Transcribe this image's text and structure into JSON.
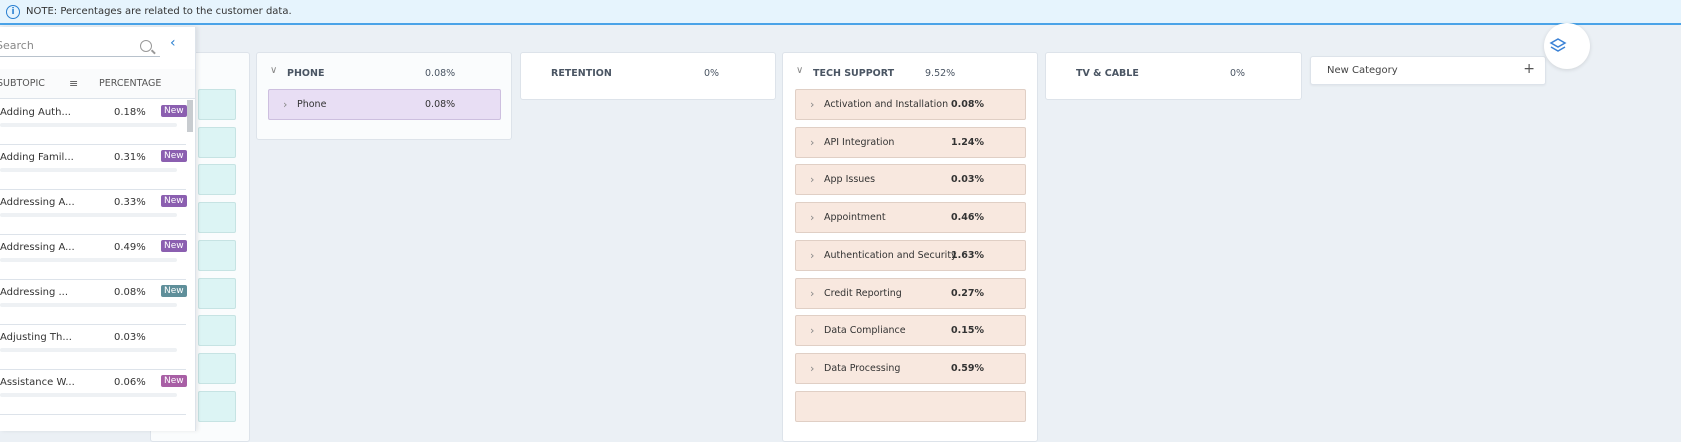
{
  "banner": {
    "text": "NOTE: Percentages are related to the customer data."
  },
  "sidebar": {
    "search_placeholder": "Search",
    "col_subtopic": "SUBTOPIC",
    "col_percentage": "PERCENTAGE",
    "rows": [
      {
        "name": "Adding Auth...",
        "pct": "0.18%",
        "badge": "New",
        "badge_color": "#8b5fb0"
      },
      {
        "name": "Adding Famil...",
        "pct": "0.31%",
        "badge": "New",
        "badge_color": "#8b5fb0"
      },
      {
        "name": "Addressing A...",
        "pct": "0.33%",
        "badge": "New",
        "badge_color": "#8b5fb0"
      },
      {
        "name": "Addressing A...",
        "pct": "0.49%",
        "badge": "New",
        "badge_color": "#8b5fb0"
      },
      {
        "name": "Addressing ...",
        "pct": "0.08%",
        "badge": "New",
        "badge_color": "#5f8f9a"
      },
      {
        "name": "Adjusting Th...",
        "pct": "0.03%",
        "badge": "",
        "badge_color": ""
      },
      {
        "name": "Assistance W...",
        "pct": "0.06%",
        "badge": "New",
        "badge_color": "#a85fa5"
      }
    ]
  },
  "columns": {
    "phone": {
      "title": "PHONE",
      "pct": "0.08%",
      "items": [
        {
          "label": "Phone",
          "pct": "0.08%"
        }
      ]
    },
    "retention": {
      "title": "RETENTION",
      "pct": "0%"
    },
    "tech_support": {
      "title": "TECH SUPPORT",
      "pct": "9.52%",
      "items": [
        {
          "label": "Activation and Installation",
          "pct": "0.08%"
        },
        {
          "label": "API Integration",
          "pct": "1.24%"
        },
        {
          "label": "App Issues",
          "pct": "0.03%"
        },
        {
          "label": "Appointment",
          "pct": "0.46%"
        },
        {
          "label": "Authentication and Security",
          "pct": "1.63%"
        },
        {
          "label": "Credit Reporting",
          "pct": "0.27%"
        },
        {
          "label": "Data Compliance",
          "pct": "0.15%"
        },
        {
          "label": "Data Processing",
          "pct": "0.59%"
        }
      ]
    },
    "tv_cable": {
      "title": "TV & CABLE",
      "pct": "0%"
    }
  },
  "new_category": {
    "label": "New Category"
  }
}
